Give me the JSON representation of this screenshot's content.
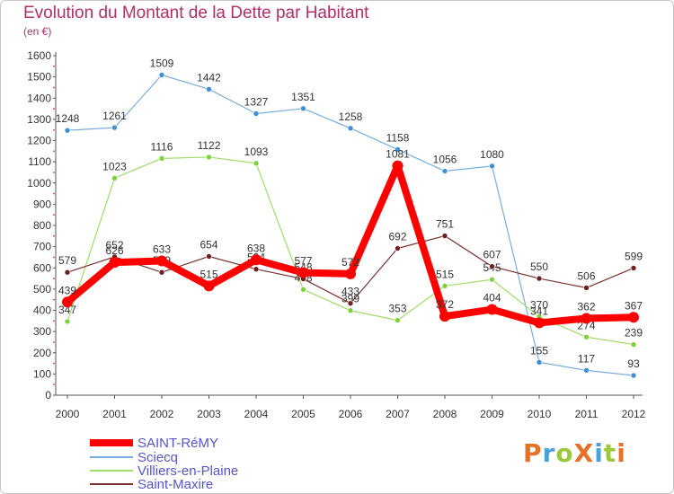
{
  "title": "Evolution du Montant de la Dette par Habitant",
  "subtitle": "(en €)",
  "logo": {
    "text": "ProXiti",
    "colors": [
      "#e8712a",
      "#4aa2d8",
      "#9bc83c",
      "#e8712a",
      "#4aa2d8",
      "#9bc83c",
      "#e8712a"
    ]
  },
  "chart_data": {
    "type": "line",
    "x": [
      "2000",
      "2001",
      "2002",
      "2003",
      "2004",
      "2005",
      "2006",
      "2007",
      "2008",
      "2009",
      "2010",
      "2011",
      "2012"
    ],
    "ylim": [
      0,
      1600
    ],
    "yticks": [
      0,
      100,
      200,
      300,
      400,
      500,
      600,
      700,
      800,
      900,
      1000,
      1100,
      1200,
      1300,
      1400,
      1500,
      1600
    ],
    "grid": false,
    "legend_position": "bottom-left",
    "series": [
      {
        "name": "Sciecq",
        "color": "#3d8fd6",
        "line_color": "#7aaedd",
        "width": 1.2,
        "values": [
          1248,
          1261,
          1509,
          1442,
          1327,
          1351,
          1258,
          1158,
          1056,
          1080,
          155,
          117,
          93
        ]
      },
      {
        "name": "Villiers-en-Plaine",
        "color": "#7fd13b",
        "line_color": "#9fdc6a",
        "width": 1.2,
        "values": [
          347,
          1023,
          1116,
          1122,
          1093,
          498,
          399,
          353,
          515,
          545,
          370,
          274,
          239
        ]
      },
      {
        "name": "Saint-Maxire",
        "color": "#6b2121",
        "line_color": "#7a3030",
        "width": 1.2,
        "values": [
          579,
          652,
          579,
          654,
          594,
          548,
          433,
          692,
          751,
          607,
          550,
          506,
          599
        ]
      },
      {
        "name": "SAINT-RéMY",
        "color": "#ff0000",
        "line_color": "#ff0000",
        "width": 8,
        "values": [
          439,
          626,
          633,
          515,
          638,
          577,
          572,
          1081,
          372,
          404,
          341,
          362,
          367
        ]
      }
    ],
    "legend_order": [
      "SAINT-RéMY",
      "Sciecq",
      "Villiers-en-Plaine",
      "Saint-Maxire"
    ]
  }
}
